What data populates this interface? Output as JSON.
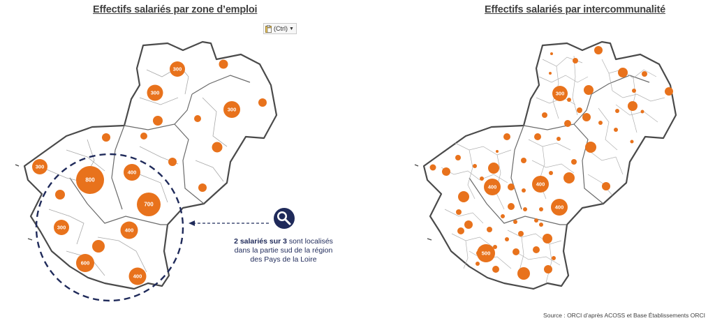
{
  "titles": {
    "left": "Effectifs salariés par zone d’emploi",
    "right": "Effectifs salariés par intercommunalité"
  },
  "paste_options": {
    "label": "(Ctrl)",
    "icon": "clipboard-icon",
    "arrow_icon": "dropdown-arrow-icon"
  },
  "colors": {
    "bubble": "#e8721c",
    "border": "#4a4a4a",
    "inner_border": "#9a9a9a",
    "circle": "#1f2a5a"
  },
  "callout": {
    "icon": "magnifier-icon",
    "bold": "2 salariés sur 3",
    "text1": " sont localisés",
    "text2": "dans la partie sud de la région",
    "text3": "des Pays de la Loire"
  },
  "source": "Source : ORCI d’après ACOSS et Base Établissements ORCI",
  "left_labels": [
    "300",
    "300",
    "300",
    "300",
    "800",
    "400",
    "700",
    "300",
    "400",
    "600",
    "400"
  ],
  "right_labels": [
    "300",
    "400",
    "400",
    "400",
    "500"
  ]
}
